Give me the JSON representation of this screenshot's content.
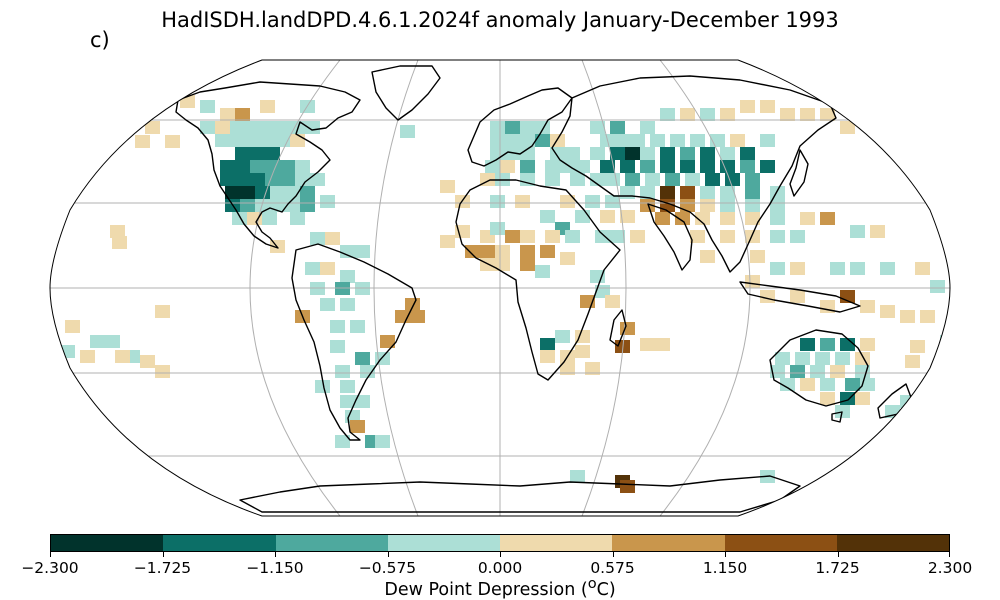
{
  "map": {
    "title": "HadISDH.landDPD.4.6.1.2024f anomaly January-December 1993",
    "panel_label": "c)",
    "projection": "Robinson",
    "gridlines": "on",
    "coastlines": "on"
  },
  "colorbar": {
    "label_main": "Dew Point Depression (",
    "label_unit_sup": "o",
    "label_unit": "C)",
    "ticks": [
      "−2.300",
      "−1.725",
      "−1.150",
      "−0.575",
      "0.000",
      "0.575",
      "1.150",
      "1.725",
      "2.300"
    ],
    "colors": [
      "#01332c",
      "#0c6f67",
      "#4ea99e",
      "#acdfd6",
      "#efdaad",
      "#c9964c",
      "#8c5014",
      "#533208"
    ]
  },
  "chart_data": {
    "type": "heatmap",
    "title": "HadISDH.landDPD.4.6.1.2024f anomaly January-December 1993",
    "colorbar_label": "Dew Point Depression (oC)",
    "range": [
      -2.3,
      2.3
    ],
    "levels": [
      -2.3,
      -1.725,
      -1.15,
      -0.575,
      0.0,
      0.575,
      1.15,
      1.725,
      2.3
    ],
    "regions": [
      {
        "region": "North America interior",
        "class": "strong negative (-1.725 to -1.15)"
      },
      {
        "region": "Western USA",
        "class": "strongest negative (-2.3 to -1.725)"
      },
      {
        "region": "Europe",
        "class": "negative (-1.15 to 0)"
      },
      {
        "region": "Northern Asia / Siberia",
        "class": "negative (-1.725 to -0.575)"
      },
      {
        "region": "Central Asia",
        "class": "strong positive (1.725 to 2.3)"
      },
      {
        "region": "India / Southeast Asia",
        "class": "weak positive (0 to 0.575)"
      },
      {
        "region": "South America",
        "class": "mixed weak negative"
      },
      {
        "region": "Brazil",
        "class": "positive (0.575 to 1.15)"
      },
      {
        "region": "Australia",
        "class": "negative (-1.725 to -0.575)"
      },
      {
        "region": "Madagascar",
        "class": "positive (1.15 to 1.725)"
      }
    ]
  }
}
